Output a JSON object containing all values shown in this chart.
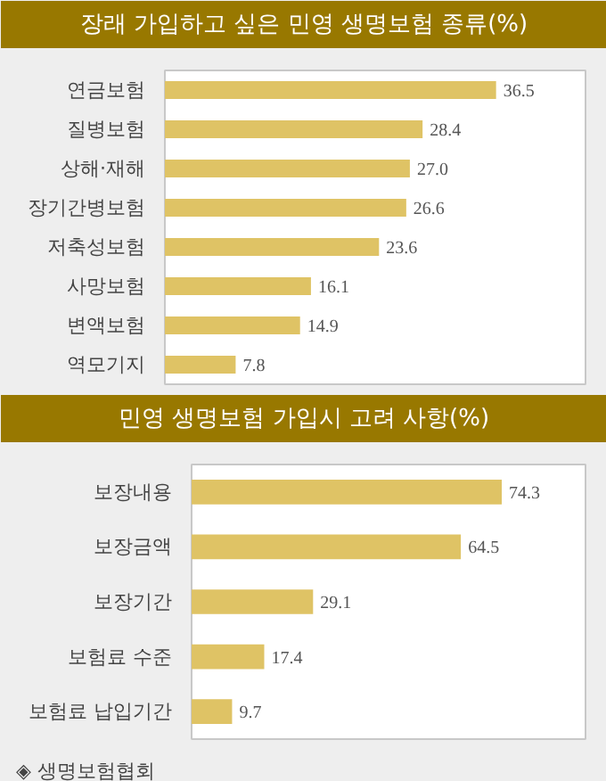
{
  "chart_data": [
    {
      "type": "bar",
      "orientation": "horizontal",
      "title": "장래 가입하고 싶은 민영 생명보험 종류(%)",
      "categories": [
        "연금보험",
        "질병보험",
        "상해·재해",
        "장기간병보험",
        "저축성보험",
        "사망보험",
        "변액보험",
        "역모기지"
      ],
      "values": [
        36.5,
        28.4,
        27.0,
        26.6,
        23.6,
        16.1,
        14.9,
        7.8
      ],
      "value_labels": [
        "36.5",
        "28.4",
        "27.0",
        "26.6",
        "23.6",
        "16.1",
        "14.9",
        "7.8"
      ],
      "color": "#dfc365",
      "grid": false,
      "legend": false
    },
    {
      "type": "bar",
      "orientation": "horizontal",
      "title": "민영 생명보험 가입시 고려 사항(%)",
      "categories": [
        "보장내용",
        "보장금액",
        "보장기간",
        "보험료 수준",
        "보험료 납입기간"
      ],
      "values": [
        74.3,
        64.5,
        29.1,
        17.4,
        9.7
      ],
      "value_labels": [
        "74.3",
        "64.5",
        "29.1",
        "17.4",
        "9.7"
      ],
      "color": "#dfc365",
      "grid": false,
      "legend": false,
      "annotations": [
        "◈ 생명보험협회"
      ]
    }
  ]
}
